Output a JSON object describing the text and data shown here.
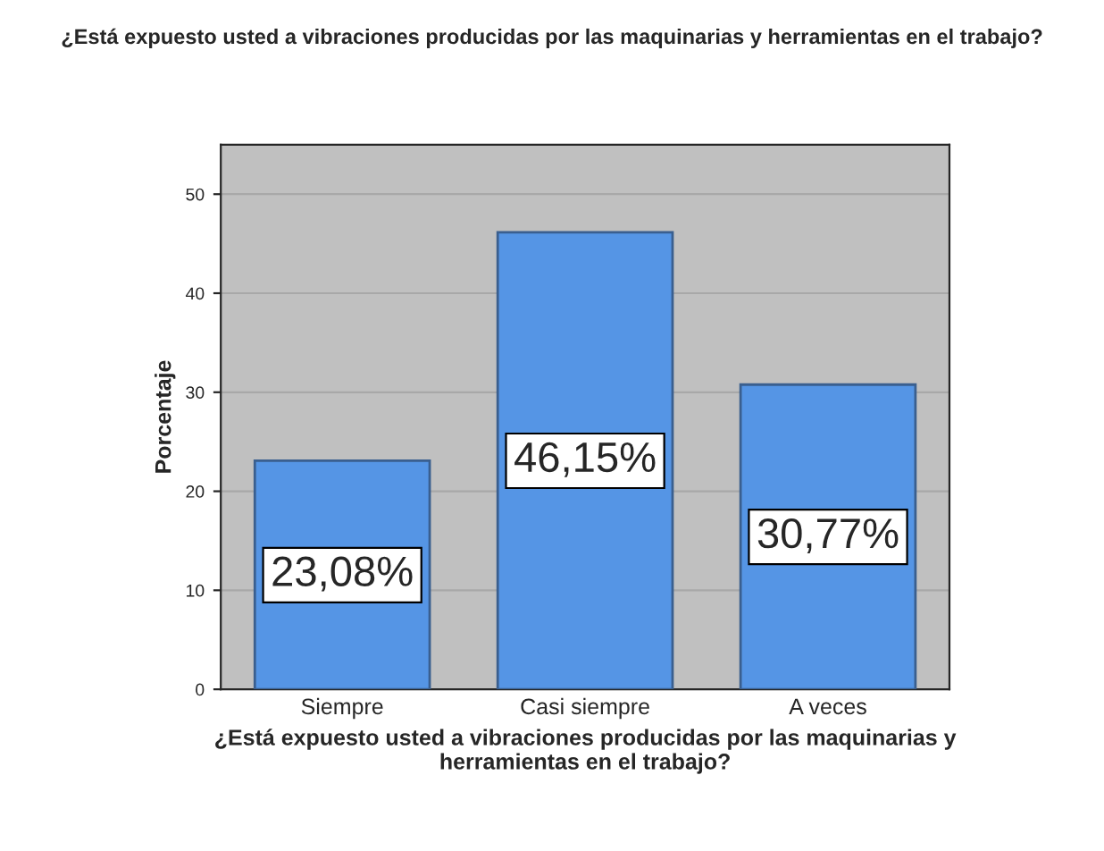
{
  "chart_data": {
    "type": "bar",
    "title": "¿Está expuesto usted a vibraciones producidas por las maquinarias y herramientas en el trabajo?",
    "xlabel": "¿Está expuesto usted a vibraciones producidas por las maquinarias y\nherramientas en el trabajo?",
    "ylabel": "Porcentaje",
    "categories": [
      "Siempre",
      "Casi siempre",
      "A veces"
    ],
    "values": [
      23.08,
      46.15,
      30.77
    ],
    "color": "#5595e5",
    "value_labels": [
      "23,08%",
      "46,15%",
      "30,77%"
    ],
    "ylim": [
      0,
      55
    ],
    "yticks": [
      0,
      10,
      20,
      30,
      40,
      50
    ],
    "grid": "y"
  }
}
